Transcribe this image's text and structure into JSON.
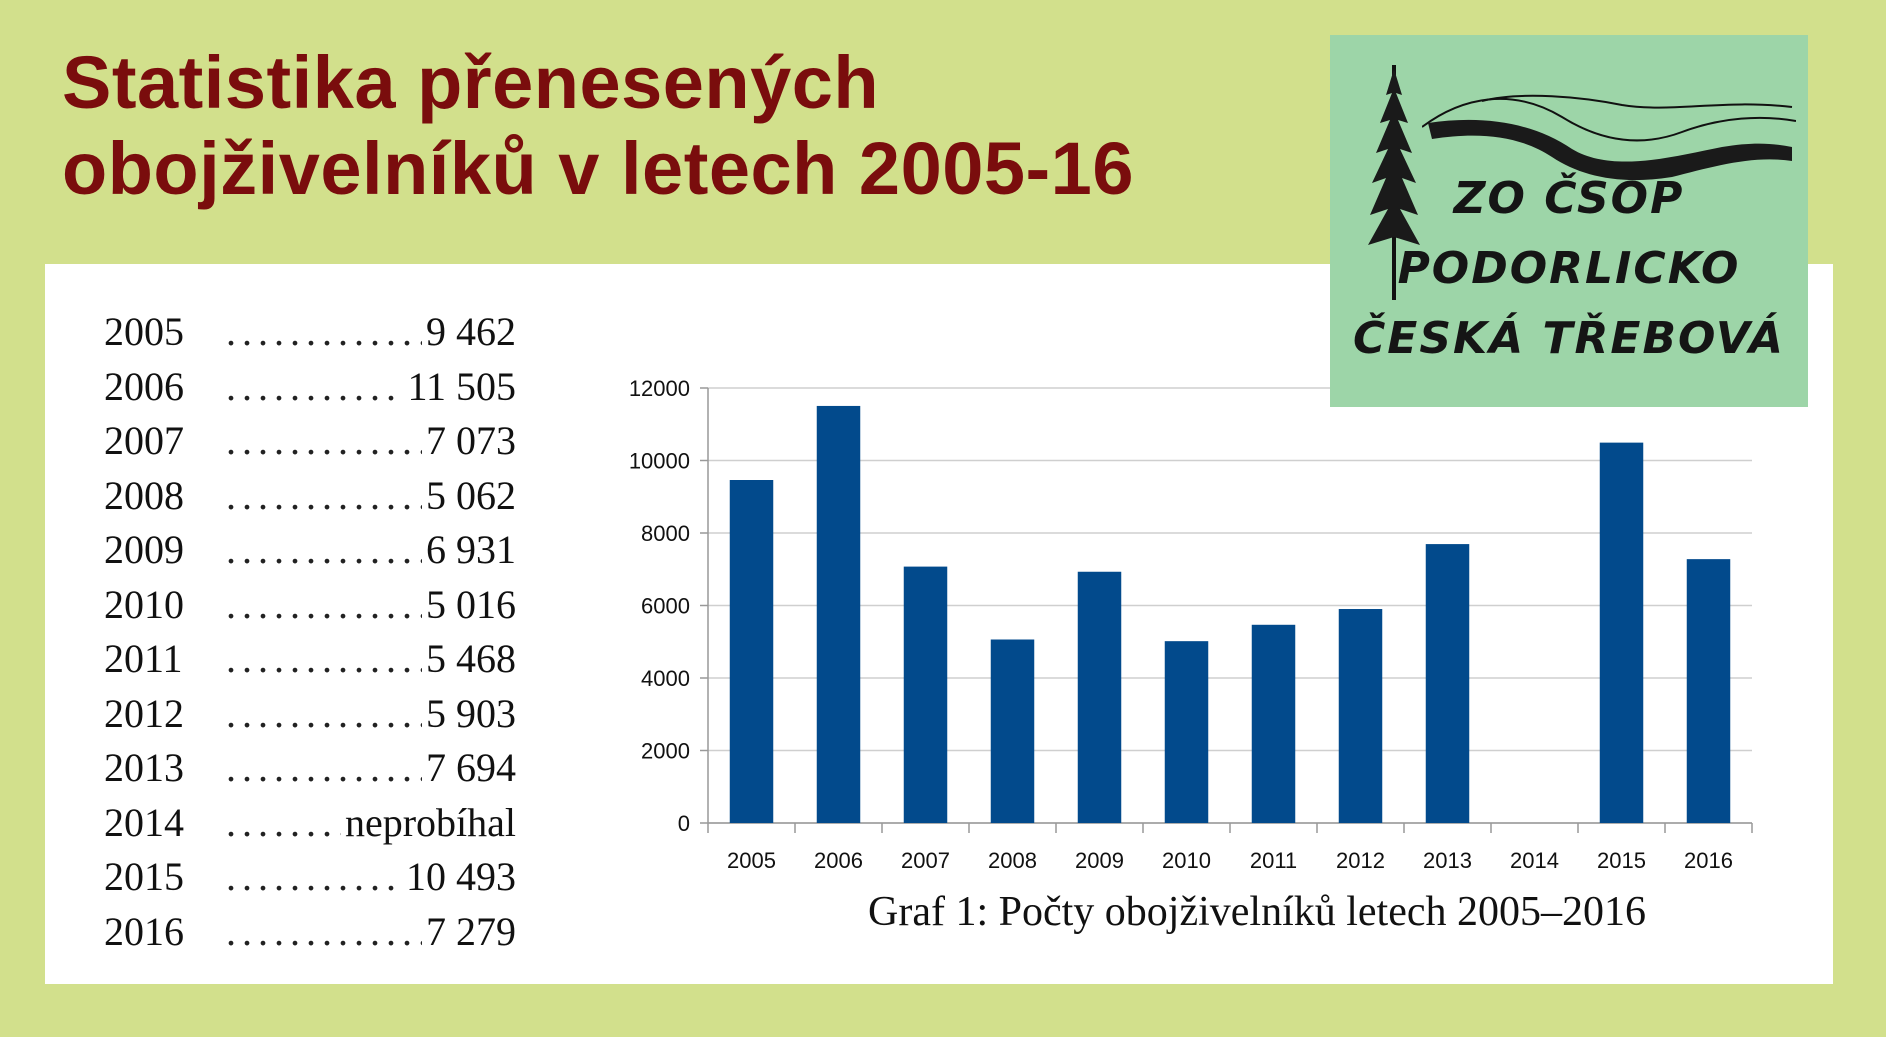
{
  "title": {
    "line1": "Statistika přenesených",
    "line2": "obojživelníků v letech 2005-16"
  },
  "logo": {
    "line1": "ZO ČSOP",
    "line2": "PODORLICKO",
    "line3": "ČESKÁ TŘEBOVÁ",
    "icon": "tree-and-hills-logo"
  },
  "table": {
    "rows": [
      {
        "year": "2005",
        "value": "9 462"
      },
      {
        "year": "2006",
        "value": "11 505"
      },
      {
        "year": "2007",
        "value": "7 073"
      },
      {
        "year": "2008",
        "value": "5 062"
      },
      {
        "year": "2009",
        "value": "6 931"
      },
      {
        "year": "2010",
        "value": "5 016"
      },
      {
        "year": "2011",
        "value": "5 468"
      },
      {
        "year": "2012",
        "value": "5 903"
      },
      {
        "year": "2013",
        "value": "7 694"
      },
      {
        "year": "2014",
        "value": "neprobíhal"
      },
      {
        "year": "2015",
        "value": "10 493"
      },
      {
        "year": "2016",
        "value": "7 279"
      }
    ]
  },
  "caption": "Graf 1: Počty obojživelníků letech 2005–2016",
  "colors": {
    "background": "#d2e08c",
    "title": "#7a0d0d",
    "bar": "#024a8c",
    "logo_bg": "#9dd5a8"
  },
  "chart_data": {
    "type": "bar",
    "title": "",
    "xlabel": "",
    "ylabel": "",
    "categories": [
      "2005",
      "2006",
      "2007",
      "2008",
      "2009",
      "2010",
      "2011",
      "2012",
      "2013",
      "2014",
      "2015",
      "2016"
    ],
    "values": [
      9462,
      11505,
      7073,
      5062,
      6931,
      5016,
      5468,
      5903,
      7694,
      null,
      10493,
      7279
    ],
    "ylim": [
      0,
      12000
    ],
    "yticks": [
      0,
      2000,
      4000,
      6000,
      8000,
      10000,
      12000
    ],
    "grid": true,
    "legend": "none"
  }
}
